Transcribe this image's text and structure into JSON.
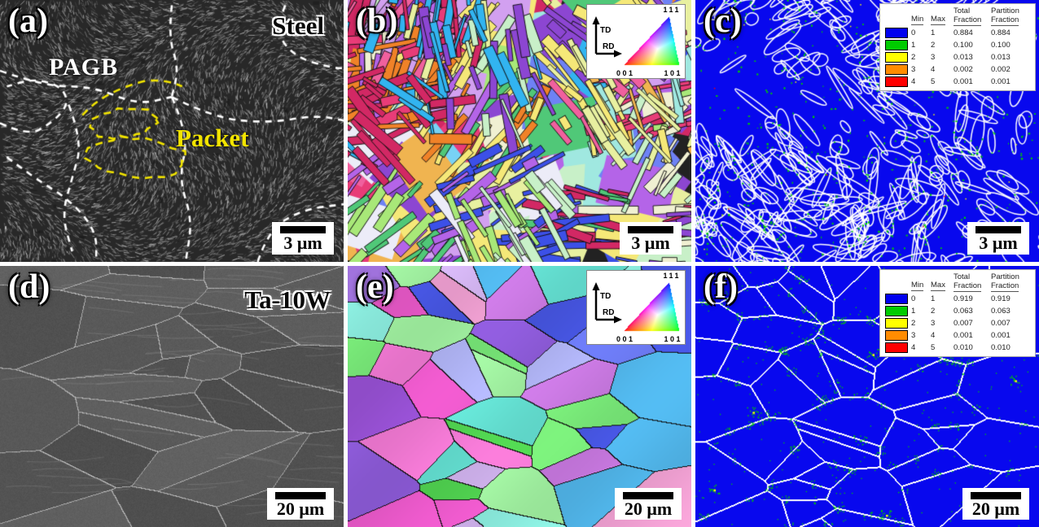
{
  "figure": {
    "caption_tags": [
      "(a)",
      "(b)",
      "(c)",
      "(d)",
      "(e)",
      "(f)"
    ],
    "materials": [
      "Steel",
      "Ta-10W"
    ]
  },
  "panels": {
    "a": {
      "label": "(a)",
      "material": "Steel",
      "pagb": "PAGB",
      "packet": "Packet",
      "scale": "3 μm"
    },
    "b": {
      "label": "(b)",
      "scale": "3 μm",
      "inset": {
        "axis_vertical": "TD",
        "axis_horizontal": "RD",
        "corner_top": "111",
        "corner_bottom_left": "001",
        "corner_bottom_right": "101"
      }
    },
    "c": {
      "label": "(c)",
      "scale": "3 μm",
      "legend": {
        "headers": {
          "min": "Min",
          "max": "Max",
          "total": "Total",
          "partition": "Partition",
          "fraction": "Fraction"
        },
        "rows": [
          {
            "color": "#0000f0",
            "min": "0",
            "max": "1",
            "total": "0.884",
            "partition": "0.884"
          },
          {
            "color": "#00cc00",
            "min": "1",
            "max": "2",
            "total": "0.100",
            "partition": "0.100"
          },
          {
            "color": "#ffff00",
            "min": "2",
            "max": "3",
            "total": "0.013",
            "partition": "0.013"
          },
          {
            "color": "#ff8c00",
            "min": "3",
            "max": "4",
            "total": "0.002",
            "partition": "0.002"
          },
          {
            "color": "#ff0000",
            "min": "4",
            "max": "5",
            "total": "0.001",
            "partition": "0.001"
          }
        ]
      }
    },
    "d": {
      "label": "(d)",
      "material": "Ta-10W",
      "scale": "20 μm"
    },
    "e": {
      "label": "(e)",
      "scale": "20 μm",
      "inset": {
        "axis_vertical": "TD",
        "axis_horizontal": "RD",
        "corner_top": "111",
        "corner_bottom_left": "001",
        "corner_bottom_right": "101"
      }
    },
    "f": {
      "label": "(f)",
      "scale": "20 μm",
      "legend": {
        "headers": {
          "min": "Min",
          "max": "Max",
          "total": "Total",
          "partition": "Partition",
          "fraction": "Fraction"
        },
        "rows": [
          {
            "color": "#0000f0",
            "min": "0",
            "max": "1",
            "total": "0.919",
            "partition": "0.919"
          },
          {
            "color": "#00cc00",
            "min": "1",
            "max": "2",
            "total": "0.063",
            "partition": "0.063"
          },
          {
            "color": "#ffff00",
            "min": "2",
            "max": "3",
            "total": "0.007",
            "partition": "0.007"
          },
          {
            "color": "#ff8c00",
            "min": "3",
            "max": "4",
            "total": "0.001",
            "partition": "0.001"
          },
          {
            "color": "#ff0000",
            "min": "4",
            "max": "5",
            "total": "0.010",
            "partition": "0.010"
          }
        ]
      }
    }
  },
  "colors": {
    "kam_background": "#0808ee",
    "kam_boundary": "#ffffff",
    "kam_levels": [
      "#0000f0",
      "#00cc00",
      "#ffff00",
      "#ff8c00",
      "#ff0000"
    ],
    "pagb_line": "#ffffff",
    "packet_line": "#f2e400",
    "sem_steel_base": "#282828",
    "sem_ta_base": "#565656",
    "ipf_steel_palette": [
      "#e83c78",
      "#f0609e",
      "#d22864",
      "#3c50e8",
      "#6e82f5",
      "#32b4f0",
      "#78d2f5",
      "#a0e8e0",
      "#50c878",
      "#a8e878",
      "#e8f0a0",
      "#f5e878",
      "#f0b450",
      "#f08228",
      "#b464e8",
      "#8c46d2",
      "#d2a0f0",
      "#ececf8",
      "#f0f0d2",
      "#c8f0c8"
    ],
    "ipf_ta_palette": [
      "#50d250",
      "#78e878",
      "#a0f0a0",
      "#4655e0",
      "#6a78ee",
      "#8c5ad7",
      "#a878e8",
      "#c878e0",
      "#e858c8",
      "#f078d2",
      "#b0b4f5",
      "#64e0d2",
      "#8ceee0",
      "#f0a0d2",
      "#9650d2",
      "#d2b4f0",
      "#50b4e8"
    ]
  }
}
